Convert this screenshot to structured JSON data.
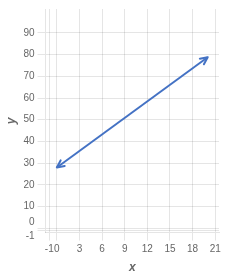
{
  "chart_data": {
    "type": "line",
    "x": [
      0,
      20
    ],
    "values": [
      28,
      78.8
    ],
    "color": "#4472C4",
    "marker": "arrow",
    "x_label": "x",
    "y_label": "y",
    "xlim": [
      -1.5,
      21.5
    ],
    "ylim": [
      -2,
      101
    ],
    "xticks": [
      -1,
      0,
      3,
      6,
      9,
      12,
      15,
      18,
      21
    ],
    "yticks": [
      -1,
      0,
      10,
      20,
      30,
      40,
      50,
      60,
      70,
      80,
      90
    ],
    "grid": true
  }
}
